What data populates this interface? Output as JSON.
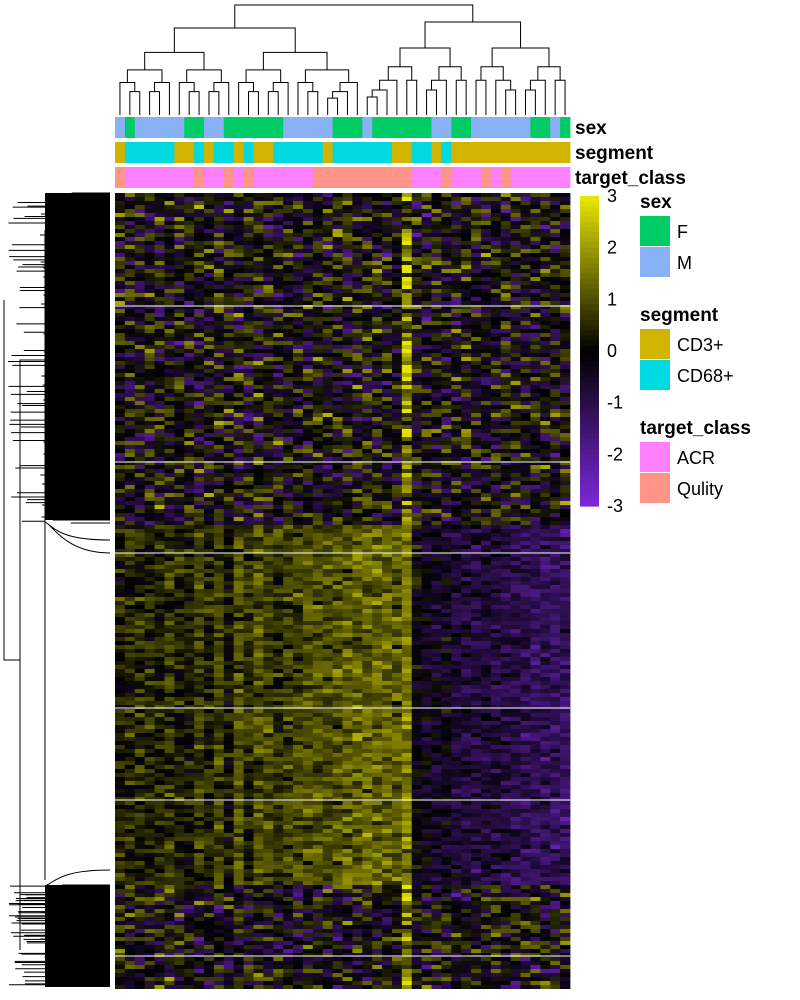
{
  "chart_data": {
    "type": "heatmap",
    "title": "",
    "n_columns": 46,
    "row_dendrogram": true,
    "column_dendrogram": true,
    "color_scale": {
      "min": -3,
      "max": 3,
      "ticks": [
        3,
        2,
        1,
        0,
        -1,
        -2,
        -3
      ],
      "tick_labels": [
        "3",
        "2",
        "1",
        "0",
        "-1",
        "-2",
        "-3"
      ],
      "colors": {
        "low": "#7a28d6",
        "mid": "#000000",
        "high": "#e6e600"
      }
    },
    "annotation_tracks": [
      {
        "name": "sex",
        "label": "sex"
      },
      {
        "name": "segment",
        "label": "segment"
      },
      {
        "name": "target_class",
        "label": "target_class"
      }
    ],
    "annotations": {
      "sex": [
        "M",
        "F",
        "M",
        "M",
        "M",
        "M",
        "M",
        "F",
        "F",
        "M",
        "M",
        "F",
        "F",
        "F",
        "F",
        "F",
        "F",
        "M",
        "M",
        "M",
        "M",
        "M",
        "F",
        "F",
        "F",
        "M",
        "F",
        "F",
        "F",
        "F",
        "F",
        "F",
        "M",
        "M",
        "F",
        "F",
        "M",
        "M",
        "M",
        "M",
        "M",
        "M",
        "F",
        "F",
        "M",
        "F"
      ],
      "segment": [
        "CD3+",
        "CD68+",
        "CD68+",
        "CD68+",
        "CD68+",
        "CD68+",
        "CD3+",
        "CD3+",
        "CD68+",
        "CD3+",
        "CD68+",
        "CD68+",
        "CD3+",
        "CD68+",
        "CD3+",
        "CD3+",
        "CD68+",
        "CD68+",
        "CD68+",
        "CD68+",
        "CD68+",
        "CD3+",
        "CD68+",
        "CD68+",
        "CD68+",
        "CD68+",
        "CD68+",
        "CD68+",
        "CD3+",
        "CD3+",
        "CD68+",
        "CD68+",
        "CD3+",
        "CD68+",
        "CD3+",
        "CD3+",
        "CD3+",
        "CD3+",
        "CD3+",
        "CD3+",
        "CD3+",
        "CD3+",
        "CD3+",
        "CD3+",
        "CD3+",
        "CD3+"
      ],
      "target_class": [
        "Qulity",
        "ACR",
        "ACR",
        "ACR",
        "ACR",
        "ACR",
        "ACR",
        "ACR",
        "Qulity",
        "ACR",
        "ACR",
        "Qulity",
        "ACR",
        "Qulity",
        "ACR",
        "ACR",
        "ACR",
        "ACR",
        "ACR",
        "ACR",
        "Qulity",
        "Qulity",
        "Qulity",
        "Qulity",
        "Qulity",
        "Qulity",
        "Qulity",
        "Qulity",
        "Qulity",
        "Qulity",
        "ACR",
        "ACR",
        "ACR",
        "Qulity",
        "ACR",
        "ACR",
        "ACR",
        "Qulity",
        "ACR",
        "Qulity",
        "ACR",
        "ACR",
        "ACR",
        "ACR",
        "ACR",
        "ACR"
      ]
    },
    "legends": [
      {
        "title": "sex",
        "entries": [
          {
            "label": "F",
            "color": "#00cc66"
          },
          {
            "label": "M",
            "color": "#88b2f5"
          }
        ]
      },
      {
        "title": "segment",
        "entries": [
          {
            "label": "CD3+",
            "color": "#d1b400"
          },
          {
            "label": "CD68+",
            "color": "#00d9e0"
          }
        ]
      },
      {
        "title": "target_class",
        "entries": [
          {
            "label": "ACR",
            "color": "#ff80ff"
          },
          {
            "label": "Qulity",
            "color": "#ff9588"
          }
        ]
      }
    ],
    "row_clusters": [
      {
        "name": "upper-cluster",
        "pattern": "noisy mixed values around 0"
      },
      {
        "name": "middle-cluster",
        "pattern": "high (yellow) in left columns, low (purple) in right columns"
      },
      {
        "name": "lower-cluster",
        "pattern": "noisy mixed values around 0"
      }
    ],
    "column_profile": [
      0.6,
      0.9,
      1.0,
      0.7,
      0.8,
      1.2,
      0.7,
      0.2,
      1.4,
      0.8,
      1.6,
      0.3,
      1.8,
      1.0,
      1.9,
      1.7,
      1.2,
      1.4,
      1.5,
      1.9,
      2.0,
      1.8,
      2.0,
      2.2,
      2.3,
      2.4,
      2.4,
      2.3,
      2.2,
      3.0,
      -0.2,
      -0.6,
      -1.0,
      -0.8,
      -1.3,
      -1.4,
      -1.6,
      -1.2,
      -1.5,
      -1.6,
      -1.8,
      -1.9,
      -2.2,
      -2.1,
      -2.4,
      -2.5
    ]
  }
}
